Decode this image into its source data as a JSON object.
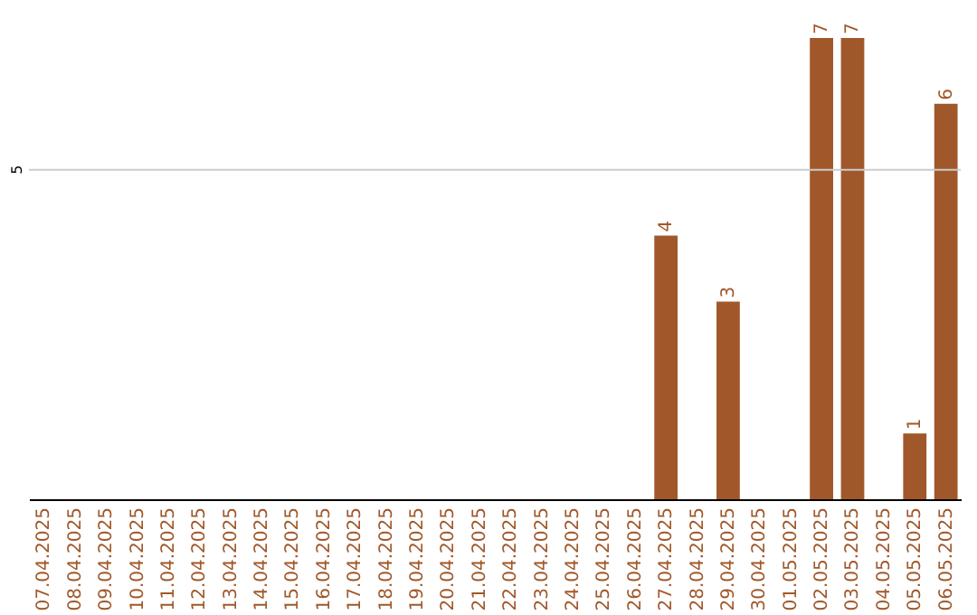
{
  "chart_data": {
    "type": "bar",
    "categories": [
      "07.04.2025",
      "08.04.2025",
      "09.04.2025",
      "10.04.2025",
      "11.04.2025",
      "12.04.2025",
      "13.04.2025",
      "14.04.2025",
      "15.04.2025",
      "16.04.2025",
      "17.04.2025",
      "18.04.2025",
      "19.04.2025",
      "20.04.2025",
      "21.04.2025",
      "22.04.2025",
      "23.04.2025",
      "24.04.2025",
      "25.04.2025",
      "26.04.2025",
      "27.04.2025",
      "28.04.2025",
      "29.04.2025",
      "30.04.2025",
      "01.05.2025",
      "02.05.2025",
      "03.05.2025",
      "04.05.2025",
      "05.05.2025",
      "06.05.2025"
    ],
    "values": [
      null,
      null,
      null,
      null,
      null,
      null,
      null,
      null,
      null,
      null,
      null,
      null,
      null,
      null,
      null,
      null,
      null,
      null,
      null,
      null,
      4,
      null,
      3,
      null,
      null,
      7,
      7,
      null,
      1,
      6
    ],
    "data_labels": true,
    "color": "#a0582a",
    "ylim": [
      0,
      7
    ],
    "ref_lines": [
      {
        "axis": "y",
        "value": 5,
        "label": "5",
        "color": "#cccccc"
      }
    ]
  }
}
